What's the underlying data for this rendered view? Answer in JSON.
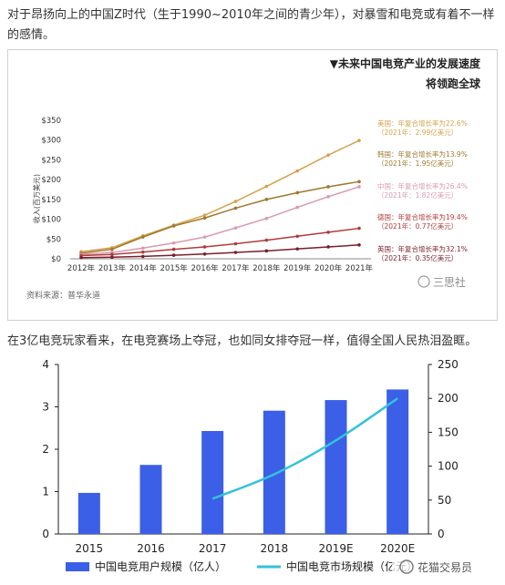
{
  "article": {
    "paragraph1": "对于昂扬向上的中国Z时代（生于1990~2010年之间的青少年），对暴雪和电竞或有着不一样的感情。",
    "paragraph2": "在3亿电竞玩家看来，在电竞赛场上夺冠，也如同女排夺冠一样，值得全国人民热泪盈眶。"
  },
  "watermarks": {
    "figure1": "三思社",
    "figure2": "花猫交易员"
  },
  "colors": {
    "usa": "#d4a24a",
    "korea": "#a0782f",
    "china": "#d99aae",
    "germany": "#b23a3a",
    "uk": "#7a1f2a",
    "bar": "#3b5fe6",
    "line": "#33c3d9"
  },
  "chart_data": [
    {
      "type": "line",
      "title": "▼未来中国电竞产业的发展速度",
      "subtitle": "将领跑全球",
      "ylabel": "收入(百万美元)",
      "xlabel": "",
      "categories": [
        "2012年",
        "2013年",
        "2014年",
        "2015年",
        "2016年",
        "2017年",
        "2018年",
        "2019年",
        "2020年",
        "2021年"
      ],
      "y_ticks": [
        "$0",
        "$50",
        "$100",
        "$150",
        "$200",
        "$250",
        "$300",
        "$350"
      ],
      "ylim": [
        0,
        350
      ],
      "grid": false,
      "source": "资料来源：普华永道",
      "series": [
        {
          "key": "usa",
          "values": [
            18,
            28,
            58,
            85,
            110,
            145,
            183,
            222,
            262,
            299
          ],
          "annotation": [
            "美国：年复合增长率为22.6%",
            "（2021年：2.99亿美元）"
          ]
        },
        {
          "key": "korea",
          "values": [
            14,
            24,
            55,
            83,
            103,
            128,
            150,
            167,
            182,
            195
          ],
          "annotation": [
            "韩国：年复合增长率为13.9%",
            "（2021年：1.95亿美元）"
          ]
        },
        {
          "key": "china",
          "values": [
            11,
            16,
            27,
            40,
            55,
            78,
            102,
            130,
            157,
            182
          ],
          "annotation": [
            "中国：年复合增长率为26.4%",
            "（2021年：1.82亿美元）"
          ]
        },
        {
          "key": "germany",
          "values": [
            8,
            11,
            17,
            24,
            30,
            38,
            47,
            57,
            67,
            77
          ],
          "annotation": [
            "德国：年复合增长率为19.4%",
            "（2021年：0.77亿美元）"
          ]
        },
        {
          "key": "uk",
          "values": [
            3,
            4,
            6,
            9,
            12,
            16,
            20,
            25,
            30,
            35
          ],
          "annotation": [
            "英国：年复合增长率为32.1%",
            "（2021年：0.35亿美元）"
          ]
        }
      ]
    },
    {
      "type": "bar",
      "categories": [
        "2015",
        "2016",
        "2017",
        "2018",
        "2019E",
        "2020E"
      ],
      "y_left_ticks": [
        "0",
        "1",
        "2",
        "3",
        "4"
      ],
      "y_right_ticks": [
        "0",
        "50",
        "100",
        "150",
        "200",
        "250"
      ],
      "ylim_left": [
        0,
        4
      ],
      "ylim_right": [
        0,
        250
      ],
      "grid": false,
      "legend_position": "bottom",
      "series": [
        {
          "name": "中国电竞用户规模（亿人）",
          "kind": "bar",
          "axis": "left",
          "values": [
            0.97,
            1.63,
            2.43,
            2.91,
            3.16,
            3.41
          ]
        },
        {
          "name": "中国电竞市场规模（亿元）",
          "kind": "line",
          "axis": "right",
          "values": [
            null,
            null,
            52,
            88,
            138,
            200
          ]
        }
      ]
    }
  ]
}
